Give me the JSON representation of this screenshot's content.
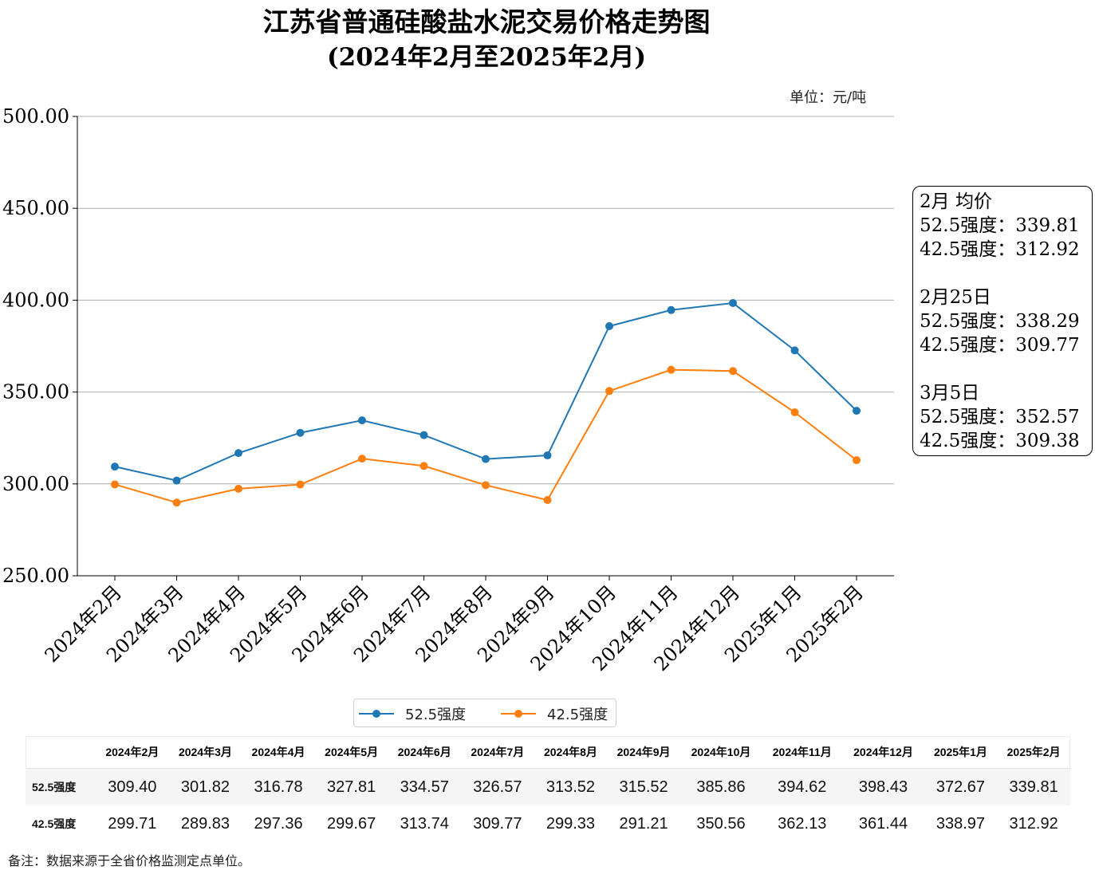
{
  "title": {
    "line1": "江苏省普通硅酸盐水泥交易价格走势图",
    "line2": "(2024年2月至2025年2月)"
  },
  "unit_label": "单位：元/吨",
  "note": "备注：数据来源于全省价格监测定点单位。",
  "info_box": [
    {
      "heading": "2月 均价",
      "lines": [
        "52.5强度：339.81",
        "42.5强度：312.92"
      ]
    },
    {
      "heading": "2月25日",
      "lines": [
        "52.5强度：338.29",
        "42.5强度：309.77"
      ]
    },
    {
      "heading": "3月5日",
      "lines": [
        "52.5强度：352.57",
        "42.5强度：309.38"
      ]
    }
  ],
  "chart_data": {
    "type": "line",
    "title": "江苏省普通硅酸盐水泥交易价格走势图",
    "subtitle": "(2024年2月至2025年2月)",
    "ylim": [
      250,
      500
    ],
    "yticks": [
      "250.00",
      "300.00",
      "350.00",
      "400.00",
      "450.00",
      "500.00"
    ],
    "grid": "horizontal",
    "legend_position": "bottom-center",
    "categories": [
      "2024年2月",
      "2024年3月",
      "2024年4月",
      "2024年5月",
      "2024年6月",
      "2024年7月",
      "2024年8月",
      "2024年9月",
      "2024年10月",
      "2024年11月",
      "2024年12月",
      "2025年1月",
      "2025年2月"
    ],
    "series": [
      {
        "name": "52.5强度",
        "color": "#1f77b4",
        "values": [
          309.4,
          301.82,
          316.78,
          327.81,
          334.57,
          326.57,
          313.52,
          315.52,
          385.86,
          394.62,
          398.43,
          372.67,
          339.81
        ]
      },
      {
        "name": "42.5强度",
        "color": "#ff7f0e",
        "values": [
          299.71,
          289.83,
          297.36,
          299.67,
          313.74,
          309.77,
          299.33,
          291.21,
          350.56,
          362.13,
          361.44,
          338.97,
          312.92
        ]
      }
    ]
  },
  "table": {
    "header": [
      "2024年2月",
      "2024年3月",
      "2024年4月",
      "2024年5月",
      "2024年6月",
      "2024年7月",
      "2024年8月",
      "2024年9月",
      "2024年10月",
      "2024年11月",
      "2024年12月",
      "2025年1月",
      "2025年2月"
    ],
    "rows": [
      {
        "label": "52.5强度",
        "cells": [
          "309.40",
          "301.82",
          "316.78",
          "327.81",
          "334.57",
          "326.57",
          "313.52",
          "315.52",
          "385.86",
          "394.62",
          "398.43",
          "372.67",
          "339.81"
        ]
      },
      {
        "label": "42.5强度",
        "cells": [
          "299.71",
          "289.83",
          "297.36",
          "299.67",
          "313.74",
          "309.77",
          "299.33",
          "291.21",
          "350.56",
          "362.13",
          "361.44",
          "338.97",
          "312.92"
        ]
      }
    ]
  }
}
